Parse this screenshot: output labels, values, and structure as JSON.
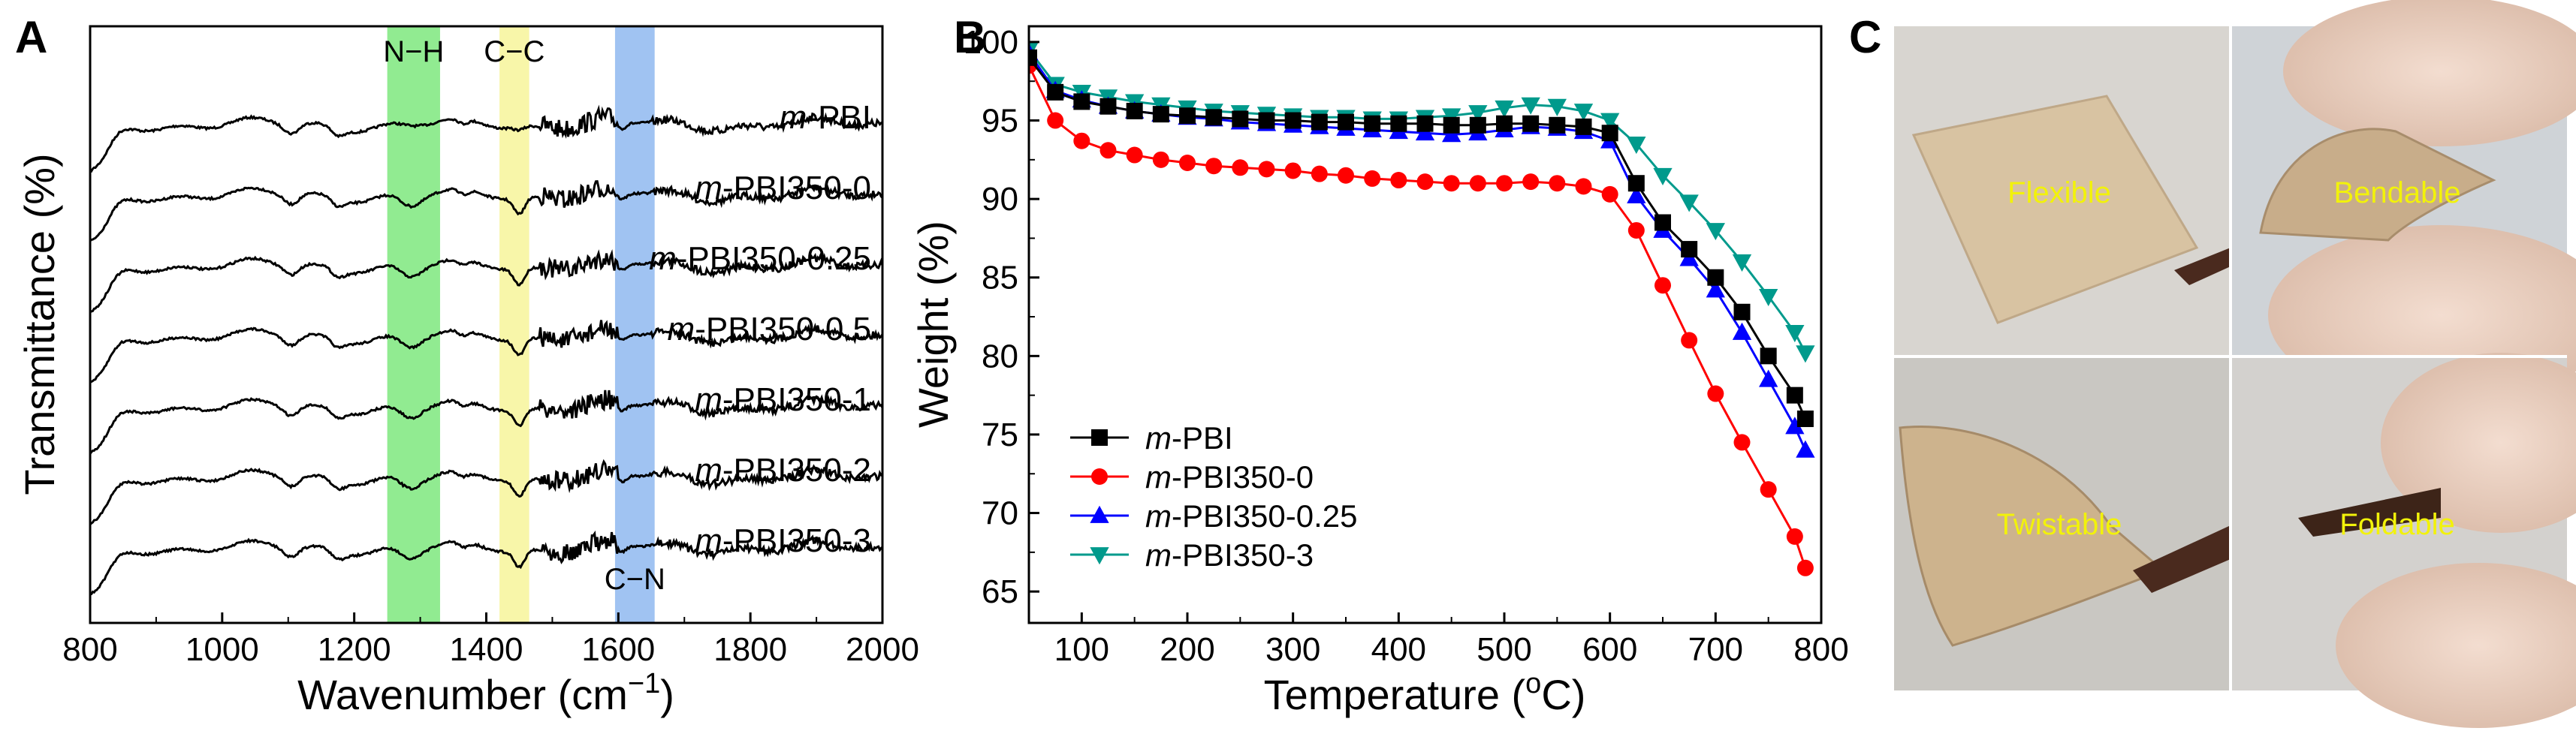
{
  "panels": {
    "a": "A",
    "b": "B",
    "c": "C"
  },
  "colors": {
    "band_nh": "#7ee87e",
    "band_cc": "#f7f59a",
    "band_cn": "#8fb8f0",
    "label_yellow": "#f2f20a"
  },
  "chart_data": [
    {
      "type": "line",
      "title": "",
      "xlabel_main": "Wavenumber (cm",
      "xlabel_exp": "−1",
      "xlabel_tail": ")",
      "ylabel": "Transmittance (%)",
      "xlim": [
        800,
        2000
      ],
      "x_ticks": [
        800,
        1000,
        1200,
        1400,
        1600,
        1800,
        2000
      ],
      "y_ticks": [],
      "bands": [
        {
          "label": "N−H",
          "from": 1250,
          "to": 1330,
          "label_pos": "top"
        },
        {
          "label": "C−C",
          "from": 1420,
          "to": 1465,
          "label_pos": "top"
        },
        {
          "label": "C−N",
          "from": 1595,
          "to": 1655,
          "label_pos": "bottom"
        }
      ],
      "series": [
        {
          "name_italic": "m",
          "name_rest": "-PBI",
          "offset": 6,
          "dip_nh": 0.05,
          "dip_cc": 0.1
        },
        {
          "name_italic": "m",
          "name_rest": "-PBI350-0",
          "offset": 5,
          "dip_nh": 0.35,
          "dip_cc": 0.5
        },
        {
          "name_italic": "m",
          "name_rest": "-PBI350-0.25",
          "offset": 4,
          "dip_nh": 0.35,
          "dip_cc": 0.5
        },
        {
          "name_italic": "m",
          "name_rest": "-PBI350-0.5",
          "offset": 3,
          "dip_nh": 0.35,
          "dip_cc": 0.5
        },
        {
          "name_italic": "m",
          "name_rest": "-PBI350-1",
          "offset": 2,
          "dip_nh": 0.35,
          "dip_cc": 0.5
        },
        {
          "name_italic": "m",
          "name_rest": "-PBI350-2",
          "offset": 1,
          "dip_nh": 0.35,
          "dip_cc": 0.5
        },
        {
          "name_italic": "m",
          "name_rest": "-PBI350-3",
          "offset": 0,
          "dip_nh": 0.35,
          "dip_cc": 0.5
        }
      ]
    },
    {
      "type": "line",
      "title": "",
      "xlabel_main": "Temperature (",
      "xlabel_sup": "o",
      "xlabel_tail": "C)",
      "ylabel": "Weight (%)",
      "xlim": [
        50,
        800
      ],
      "ylim": [
        63,
        101
      ],
      "x_ticks": [
        100,
        200,
        300,
        400,
        500,
        600,
        700,
        800
      ],
      "y_ticks": [
        65,
        70,
        75,
        80,
        85,
        90,
        95,
        100
      ],
      "legend_position": "bottom-left",
      "series": [
        {
          "name_italic": "m",
          "name_rest": "-PBI",
          "color": "#000000",
          "marker": "square",
          "x": [
            50,
            75,
            100,
            125,
            150,
            175,
            200,
            225,
            250,
            275,
            300,
            325,
            350,
            375,
            400,
            425,
            450,
            475,
            500,
            525,
            550,
            575,
            600,
            625,
            650,
            675,
            700,
            725,
            750,
            775,
            785
          ],
          "y": [
            99.0,
            96.8,
            96.2,
            95.9,
            95.6,
            95.4,
            95.3,
            95.2,
            95.1,
            95.0,
            95.0,
            94.9,
            94.9,
            94.8,
            94.8,
            94.8,
            94.7,
            94.7,
            94.8,
            94.8,
            94.7,
            94.6,
            94.2,
            91.0,
            88.5,
            86.8,
            85.0,
            82.8,
            80.0,
            77.5,
            76.0
          ]
        },
        {
          "name_italic": "m",
          "name_rest": "-PBI350-0",
          "color": "#ff0000",
          "marker": "circle",
          "x": [
            50,
            75,
            100,
            125,
            150,
            175,
            200,
            225,
            250,
            275,
            300,
            325,
            350,
            375,
            400,
            425,
            450,
            475,
            500,
            525,
            550,
            575,
            600,
            625,
            650,
            675,
            700,
            725,
            750,
            775,
            785
          ],
          "y": [
            98.5,
            95.0,
            93.7,
            93.1,
            92.8,
            92.5,
            92.3,
            92.1,
            92.0,
            91.9,
            91.8,
            91.6,
            91.5,
            91.3,
            91.2,
            91.1,
            91.0,
            91.0,
            91.0,
            91.1,
            91.0,
            90.8,
            90.3,
            88.0,
            84.5,
            81.0,
            77.6,
            74.5,
            71.5,
            68.5,
            66.5
          ]
        },
        {
          "name_italic": "m",
          "name_rest": "-PBI350-0.25",
          "color": "#0000ff",
          "marker": "triangle-up",
          "x": [
            50,
            75,
            100,
            125,
            150,
            175,
            200,
            225,
            250,
            275,
            300,
            325,
            350,
            375,
            400,
            425,
            450,
            475,
            500,
            525,
            550,
            575,
            600,
            625,
            650,
            675,
            700,
            725,
            750,
            775,
            785
          ],
          "y": [
            99.3,
            96.9,
            96.3,
            95.9,
            95.6,
            95.4,
            95.2,
            95.1,
            94.9,
            94.8,
            94.7,
            94.6,
            94.5,
            94.4,
            94.3,
            94.2,
            94.1,
            94.2,
            94.4,
            94.6,
            94.5,
            94.3,
            93.7,
            90.2,
            88.0,
            86.2,
            84.2,
            81.5,
            78.5,
            75.5,
            74.0
          ]
        },
        {
          "name_italic": "m",
          "name_rest": "-PBI350-3",
          "color": "#009a8c",
          "marker": "triangle-down",
          "x": [
            50,
            75,
            100,
            125,
            150,
            175,
            200,
            225,
            250,
            275,
            300,
            325,
            350,
            375,
            400,
            425,
            450,
            475,
            500,
            525,
            550,
            575,
            600,
            625,
            650,
            675,
            700,
            725,
            750,
            775,
            785
          ],
          "y": [
            99.5,
            97.3,
            96.8,
            96.5,
            96.2,
            96.0,
            95.8,
            95.6,
            95.5,
            95.4,
            95.3,
            95.2,
            95.2,
            95.1,
            95.1,
            95.2,
            95.3,
            95.5,
            95.8,
            96.0,
            95.9,
            95.6,
            95.0,
            93.5,
            91.5,
            89.8,
            88.0,
            86.0,
            83.8,
            81.5,
            80.2
          ]
        }
      ]
    }
  ],
  "photos": {
    "labels": [
      "Flexible",
      "Bendable",
      "Twistable",
      "Foldable"
    ]
  }
}
